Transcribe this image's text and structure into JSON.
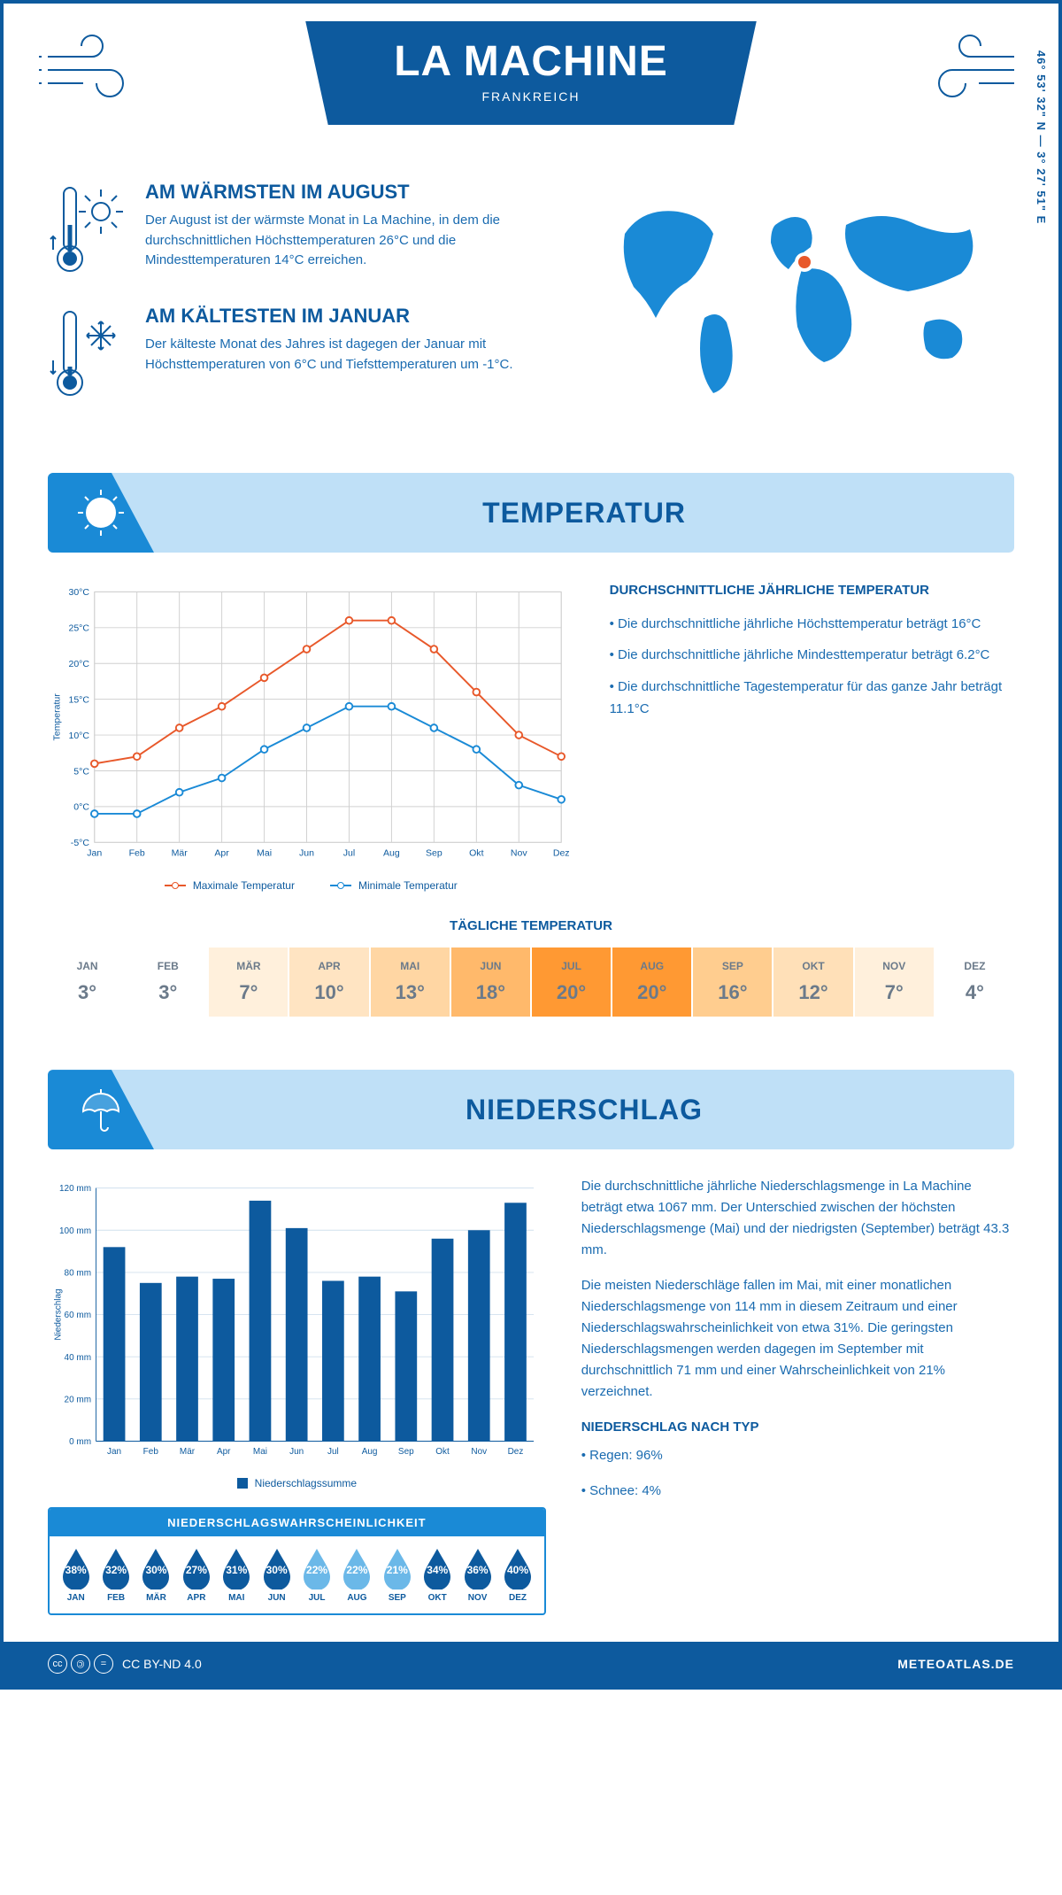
{
  "header": {
    "city": "LA MACHINE",
    "country": "FRANKREICH",
    "coordinates": "46° 53' 32\" N — 3° 27' 51\" E"
  },
  "intro": {
    "warm": {
      "title": "AM WÄRMSTEN IM AUGUST",
      "text": "Der August ist der wärmste Monat in La Machine, in dem die durchschnittlichen Höchsttemperaturen 26°C und die Mindesttemperaturen 14°C erreichen."
    },
    "cold": {
      "title": "AM KÄLTESTEN IM JANUAR",
      "text": "Der kälteste Monat des Jahres ist dagegen der Januar mit Höchsttemperaturen von 6°C und Tiefsttemperaturen um -1°C."
    }
  },
  "months": [
    "Jan",
    "Feb",
    "Mär",
    "Apr",
    "Mai",
    "Jun",
    "Jul",
    "Aug",
    "Sep",
    "Okt",
    "Nov",
    "Dez"
  ],
  "months_upper": [
    "JAN",
    "FEB",
    "MÄR",
    "APR",
    "MAI",
    "JUN",
    "JUL",
    "AUG",
    "SEP",
    "OKT",
    "NOV",
    "DEZ"
  ],
  "temperature": {
    "section_title": "TEMPERATUR",
    "chart": {
      "type": "line",
      "ylabel": "Temperatur",
      "ylim": [
        -5,
        30
      ],
      "ytick_step": 5,
      "ytick_suffix": "°C",
      "series": {
        "max": {
          "label": "Maximale Temperatur",
          "color": "#e8582a",
          "values": [
            6,
            7,
            11,
            14,
            18,
            22,
            26,
            26,
            22,
            16,
            10,
            7
          ]
        },
        "min": {
          "label": "Minimale Temperatur",
          "color": "#1a8ad6",
          "values": [
            -1,
            -1,
            2,
            4,
            8,
            11,
            14,
            14,
            11,
            8,
            3,
            1
          ]
        }
      },
      "grid_color": "#d0d0d0",
      "background": "#ffffff"
    },
    "info": {
      "title": "DURCHSCHNITTLICHE JÄHRLICHE TEMPERATUR",
      "bullets": [
        "• Die durchschnittliche jährliche Höchsttemperatur beträgt 16°C",
        "• Die durchschnittliche jährliche Mindesttemperatur beträgt 6.2°C",
        "• Die durchschnittliche Tagestemperatur für das ganze Jahr beträgt 11.1°C"
      ]
    },
    "daily": {
      "title": "TÄGLICHE TEMPERATUR",
      "values": [
        3,
        3,
        7,
        10,
        13,
        18,
        20,
        20,
        16,
        12,
        7,
        4
      ],
      "colors": [
        "#ffffff",
        "#ffffff",
        "#fff0dc",
        "#ffe4c2",
        "#ffd6a3",
        "#ffb96b",
        "#ff9933",
        "#ff9933",
        "#ffcd8f",
        "#ffe0b8",
        "#fff0dc",
        "#ffffff"
      ],
      "text_color": "#6b7a8a",
      "text_color_hot": "#5a5a5a"
    }
  },
  "precipitation": {
    "section_title": "NIEDERSCHLAG",
    "chart": {
      "type": "bar",
      "ylabel": "Niederschlag",
      "ylim": [
        0,
        120
      ],
      "ytick_step": 20,
      "ytick_suffix": " mm",
      "bar_color": "#0d5a9e",
      "grid_color": "#d0e0ee",
      "values": [
        92,
        75,
        78,
        77,
        114,
        101,
        76,
        78,
        71,
        96,
        100,
        113
      ],
      "legend": "Niederschlagssumme"
    },
    "text": {
      "p1": "Die durchschnittliche jährliche Niederschlagsmenge in La Machine beträgt etwa 1067 mm. Der Unterschied zwischen der höchsten Niederschlagsmenge (Mai) und der niedrigsten (September) beträgt 43.3 mm.",
      "p2": "Die meisten Niederschläge fallen im Mai, mit einer monatlichen Niederschlagsmenge von 114 mm in diesem Zeitraum und einer Niederschlagswahrscheinlichkeit von etwa 31%. Die geringsten Niederschlagsmengen werden dagegen im September mit durchschnittlich 71 mm und einer Wahrscheinlichkeit von 21% verzeichnet.",
      "type_title": "NIEDERSCHLAG NACH TYP",
      "type_bullets": [
        "• Regen: 96%",
        "• Schnee: 4%"
      ]
    },
    "probability": {
      "title": "NIEDERSCHLAGSWAHRSCHEINLICHKEIT",
      "values": [
        38,
        32,
        30,
        27,
        31,
        30,
        22,
        22,
        21,
        34,
        36,
        40
      ],
      "color_dark": "#0d5a9e",
      "color_light": "#6bb8e8",
      "threshold": 25
    }
  },
  "footer": {
    "license": "CC BY-ND 4.0",
    "site": "METEOATLAS.DE"
  }
}
